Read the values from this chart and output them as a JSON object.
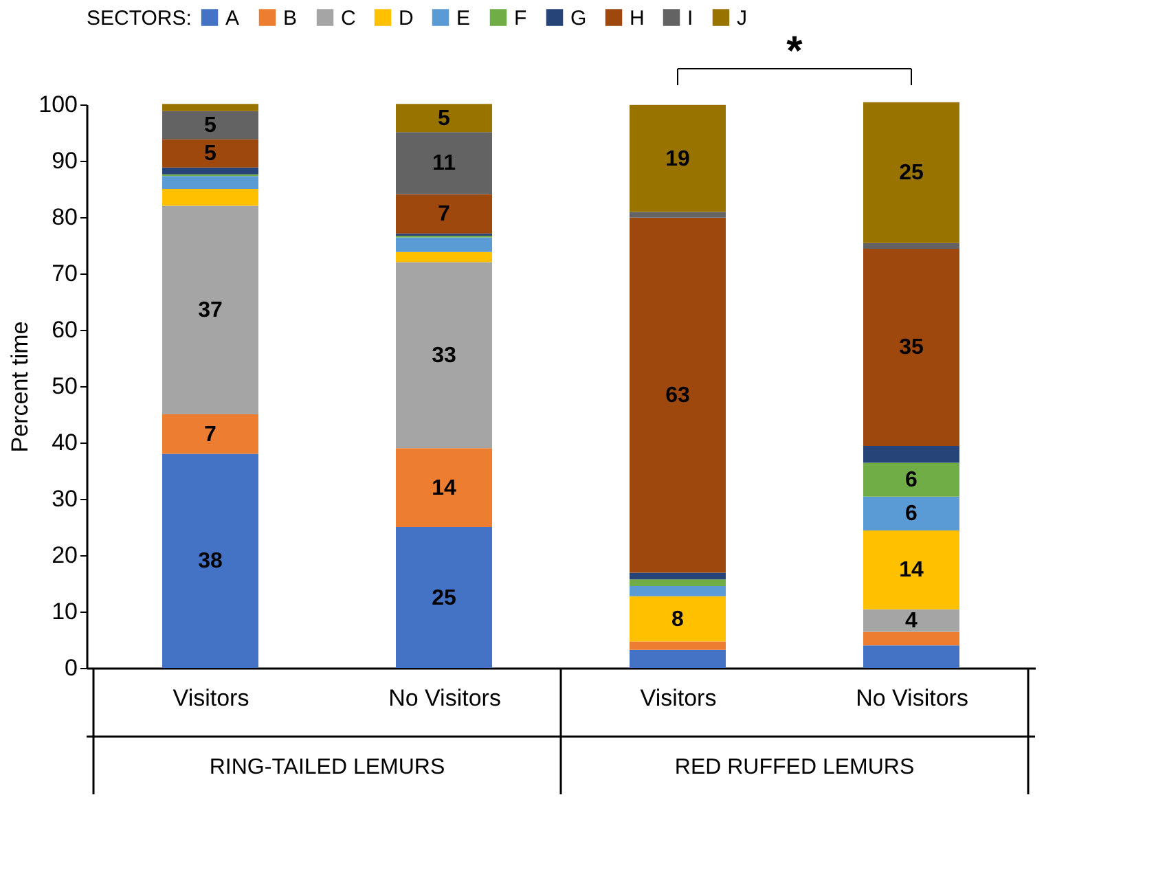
{
  "chart_data": {
    "type": "bar",
    "stacked": true,
    "ylabel": "Percent time",
    "legend_title": "SECTORS:",
    "legend": "top",
    "categories": [
      "Visitors",
      "No Visitors",
      "Visitors",
      "No Visitors"
    ],
    "annotations": [
      "*",
      "RING-TAILED LEMURS",
      "RED RUFFED LEMURS"
    ],
    "ylim": [
      0,
      100
    ],
    "yticks": [
      0,
      10,
      20,
      30,
      40,
      50,
      60,
      70,
      80,
      90,
      100
    ],
    "grid": false,
    "series": [
      {
        "name": "A",
        "color": "#4472c4",
        "values": [
          38,
          25,
          3.2,
          4
        ],
        "value_labels": [
          "38",
          "25",
          null,
          null
        ]
      },
      {
        "name": "B",
        "color": "#ed7d31",
        "values": [
          7,
          14,
          1.5,
          2.4
        ],
        "value_labels": [
          "7",
          "14",
          null,
          null
        ]
      },
      {
        "name": "C",
        "color": "#a5a5a5",
        "values": [
          37,
          33,
          null,
          4
        ],
        "value_labels": [
          "37",
          "33",
          null,
          "4"
        ]
      },
      {
        "name": "D",
        "color": "#ffc000",
        "values": [
          3,
          1.8,
          8,
          14
        ],
        "value_labels": [
          null,
          null,
          "8",
          "14"
        ]
      },
      {
        "name": "E",
        "color": "#5b9bd5",
        "values": [
          2.3,
          2.6,
          1.8,
          6
        ],
        "value_labels": [
          null,
          null,
          null,
          "6"
        ]
      },
      {
        "name": "F",
        "color": "#70ad47",
        "values": [
          0.3,
          0.3,
          1.2,
          6
        ],
        "value_labels": [
          null,
          null,
          null,
          "6"
        ]
      },
      {
        "name": "G",
        "color": "#264478",
        "values": [
          1.2,
          0.4,
          1.2,
          3
        ],
        "value_labels": [
          null,
          null,
          null,
          null
        ]
      },
      {
        "name": "H",
        "color": "#9e480e",
        "values": [
          5,
          7,
          63,
          35
        ],
        "value_labels": [
          "5",
          "7",
          "63",
          "35"
        ]
      },
      {
        "name": "I",
        "color": "#636363",
        "values": [
          5,
          11,
          1,
          1
        ],
        "value_labels": [
          "5",
          "11",
          null,
          null
        ]
      },
      {
        "name": "J",
        "color": "#997300",
        "values": [
          1.3,
          5,
          19,
          25
        ],
        "value_labels": [
          null,
          "5",
          "19",
          "25"
        ]
      }
    ]
  }
}
